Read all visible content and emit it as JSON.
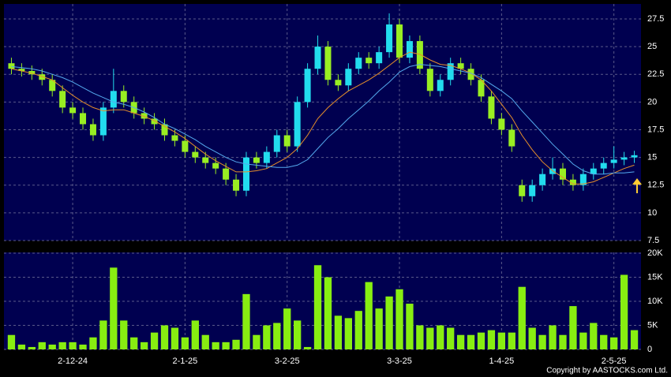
{
  "chart_data": {
    "type": "candlestick",
    "categories": [
      null,
      null,
      null,
      null,
      null,
      null,
      "2-12-24",
      null,
      null,
      null,
      null,
      null,
      null,
      null,
      null,
      null,
      null,
      "2-1-25",
      null,
      null,
      null,
      null,
      null,
      null,
      null,
      null,
      null,
      "3-2-25",
      null,
      null,
      null,
      null,
      null,
      null,
      null,
      null,
      null,
      null,
      "3-3-25",
      null,
      null,
      null,
      null,
      null,
      null,
      null,
      null,
      null,
      "1-4-25",
      null,
      null,
      null,
      null,
      null,
      null,
      null,
      null,
      null,
      null,
      "2-5-25",
      null,
      null
    ],
    "open": [
      23.5,
      23.0,
      22.8,
      22.5,
      22.0,
      21.0,
      19.5,
      19.0,
      18.0,
      17.0,
      19.5,
      21.0,
      20.0,
      19.0,
      18.5,
      18.0,
      17.0,
      16.5,
      15.5,
      15.0,
      14.5,
      14.0,
      13.0,
      12.0,
      15.0,
      14.5,
      15.5,
      17.0,
      16.0,
      20.0,
      23.0,
      25.0,
      22.0,
      21.5,
      23.0,
      24.0,
      23.5,
      24.5,
      27.0,
      24.0,
      25.5,
      23.0,
      21.0,
      22.0,
      23.5,
      23.0,
      22.0,
      20.5,
      18.5,
      17.5,
      12.5,
      11.5,
      12.5,
      13.5,
      14.0,
      13.0,
      12.5,
      13.5,
      14.0,
      14.5,
      14.8,
      15.0
    ],
    "high": [
      24.0,
      23.5,
      23.3,
      23.0,
      22.5,
      21.5,
      20.0,
      19.5,
      18.5,
      20.0,
      23.0,
      21.5,
      20.5,
      19.5,
      19.0,
      18.5,
      17.5,
      17.0,
      16.0,
      15.5,
      15.0,
      14.5,
      13.5,
      15.5,
      15.5,
      16.0,
      17.5,
      17.5,
      20.5,
      23.5,
      26.0,
      25.5,
      22.5,
      23.5,
      24.5,
      24.5,
      25.0,
      28.0,
      27.5,
      26.0,
      26.0,
      23.5,
      22.5,
      24.0,
      24.0,
      23.5,
      22.5,
      21.0,
      19.0,
      18.0,
      13.0,
      13.0,
      14.0,
      15.0,
      14.5,
      13.5,
      14.0,
      14.5,
      15.0,
      16.0,
      15.5,
      15.6
    ],
    "low": [
      22.5,
      22.3,
      22.0,
      21.5,
      20.5,
      19.0,
      18.5,
      17.5,
      16.5,
      16.5,
      19.0,
      19.5,
      18.5,
      18.0,
      17.5,
      16.5,
      16.0,
      15.0,
      14.5,
      14.0,
      13.5,
      12.5,
      11.5,
      11.5,
      14.0,
      14.0,
      15.0,
      15.5,
      15.5,
      19.5,
      22.5,
      21.5,
      21.0,
      21.0,
      22.5,
      23.0,
      23.0,
      24.0,
      23.5,
      23.5,
      22.5,
      20.5,
      20.5,
      21.5,
      22.5,
      21.5,
      20.0,
      18.0,
      17.0,
      15.5,
      11.0,
      11.0,
      12.0,
      13.0,
      12.5,
      12.0,
      12.0,
      13.0,
      13.5,
      14.0,
      14.3,
      14.5
    ],
    "close": [
      23.0,
      22.8,
      22.5,
      22.0,
      21.0,
      19.5,
      19.0,
      18.0,
      17.0,
      19.5,
      21.0,
      20.0,
      19.0,
      18.5,
      18.0,
      17.0,
      16.5,
      15.5,
      15.0,
      14.5,
      14.0,
      13.0,
      12.0,
      15.0,
      14.5,
      15.5,
      17.0,
      16.0,
      20.0,
      23.0,
      25.0,
      22.0,
      21.5,
      23.0,
      24.0,
      23.5,
      24.5,
      27.0,
      24.0,
      25.5,
      23.0,
      21.0,
      22.0,
      23.5,
      23.0,
      22.0,
      20.5,
      18.5,
      17.5,
      16.0,
      11.5,
      12.5,
      13.5,
      14.0,
      13.0,
      12.5,
      13.5,
      14.0,
      14.5,
      14.8,
      15.0,
      15.2
    ],
    "up_color": "#22ddee",
    "down_color": "#99ee22",
    "moving_averages": [
      {
        "color": "#e8902a",
        "values": [
          23.0,
          22.8,
          22.6,
          22.3,
          22.0,
          21.3,
          20.6,
          20.0,
          19.5,
          19.2,
          19.3,
          19.3,
          19.0,
          18.7,
          18.3,
          17.8,
          17.3,
          16.7,
          16.0,
          15.3,
          14.7,
          14.2,
          13.7,
          13.7,
          13.8,
          14.0,
          14.5,
          15.0,
          15.8,
          17.0,
          18.5,
          19.5,
          20.3,
          21.0,
          21.5,
          22.0,
          22.6,
          23.3,
          24.0,
          24.5,
          24.3,
          23.8,
          23.4,
          23.3,
          23.0,
          22.6,
          22.0,
          21.0,
          19.8,
          18.6,
          17.0,
          15.7,
          14.6,
          13.8,
          13.2,
          12.6,
          12.6,
          12.8,
          13.2,
          13.6,
          14.0,
          14.3
        ]
      },
      {
        "color": "#55aaee",
        "values": [
          23.2,
          23.1,
          23.0,
          22.8,
          22.5,
          22.2,
          21.8,
          21.3,
          20.8,
          20.4,
          20.0,
          19.8,
          19.5,
          19.1,
          18.6,
          18.0,
          17.6,
          17.1,
          16.6,
          16.0,
          15.5,
          15.0,
          14.6,
          14.4,
          14.3,
          14.2,
          14.1,
          14.1,
          14.3,
          14.8,
          15.8,
          16.8,
          17.6,
          18.5,
          19.3,
          20.1,
          21.0,
          21.8,
          22.7,
          23.2,
          23.4,
          23.3,
          23.2,
          23.0,
          22.8,
          22.6,
          22.2,
          21.6,
          21.0,
          20.3,
          19.2,
          18.2,
          17.2,
          16.2,
          15.3,
          14.4,
          13.8,
          13.5,
          13.5,
          13.6,
          13.6,
          13.7
        ]
      }
    ],
    "ylim": [
      7.5,
      28.85
    ],
    "yticks": [
      7.5,
      10,
      12.5,
      15,
      17.5,
      20,
      22.5,
      25,
      27.5
    ],
    "grid": true,
    "volume": {
      "color": "#88ee11",
      "values": [
        3000,
        1000,
        500,
        1500,
        1000,
        1500,
        1500,
        1000,
        2500,
        6000,
        17000,
        6000,
        2500,
        1500,
        3500,
        5000,
        4500,
        2500,
        6000,
        3000,
        1500,
        1500,
        2000,
        11500,
        3000,
        5000,
        5500,
        8500,
        6000,
        500,
        17500,
        15000,
        7000,
        6500,
        8000,
        14000,
        8500,
        11000,
        12500,
        9500,
        5000,
        4500,
        5000,
        4500,
        3000,
        3000,
        3500,
        4000,
        3500,
        3500,
        13000,
        4500,
        3000,
        5000,
        3000,
        9000,
        3500,
        5500,
        3000,
        2500,
        15500,
        4000
      ],
      "ylim": [
        0,
        20000
      ],
      "yticks": [
        0,
        {
          "value": 5000,
          "label": "5K"
        },
        {
          "value": 10000,
          "label": "10K"
        },
        {
          "value": 15000,
          "label": "15K"
        },
        {
          "value": 20000,
          "label": "20K"
        }
      ]
    },
    "copyright": "Copyright by AASTOCKS.com Ltd."
  }
}
